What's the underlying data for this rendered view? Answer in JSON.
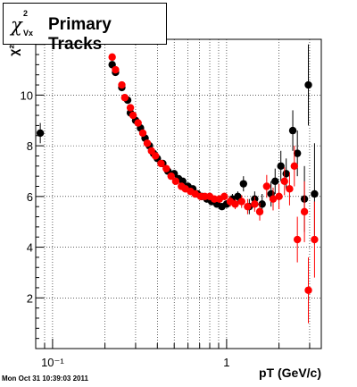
{
  "chart_data": {
    "type": "scatter",
    "title_parts": {
      "symbol": "χ",
      "superscript": "2",
      "subscript": "Vx",
      "text": "Primary Tracks"
    },
    "xlabel": "pT (GeV/c)",
    "ylabel": "χ²",
    "x_scale": "log",
    "xlim": [
      0.08,
      3.5
    ],
    "ylim": [
      0,
      12.2
    ],
    "x_tick_labels": [
      {
        "value": 0.1,
        "label": "10⁻¹"
      },
      {
        "value": 1,
        "label": "1"
      }
    ],
    "y_ticks": [
      2,
      4,
      6,
      8,
      10
    ],
    "grid": true,
    "series": [
      {
        "color": "#000000",
        "points": [
          [
            0.085,
            8.5,
            0.4
          ],
          [
            0.22,
            11.2,
            0.1
          ],
          [
            0.23,
            10.9,
            0.1
          ],
          [
            0.25,
            10.3,
            0.1
          ],
          [
            0.27,
            9.8,
            0.1
          ],
          [
            0.28,
            9.3,
            0.1
          ],
          [
            0.3,
            9.0,
            0.1
          ],
          [
            0.32,
            8.7,
            0.1
          ],
          [
            0.34,
            8.3,
            0.1
          ],
          [
            0.36,
            8.0,
            0.1
          ],
          [
            0.38,
            7.7,
            0.1
          ],
          [
            0.4,
            7.5,
            0.1
          ],
          [
            0.43,
            7.3,
            0.1
          ],
          [
            0.46,
            7.0,
            0.1
          ],
          [
            0.5,
            6.9,
            0.1
          ],
          [
            0.53,
            6.7,
            0.1
          ],
          [
            0.56,
            6.6,
            0.1
          ],
          [
            0.6,
            6.4,
            0.1
          ],
          [
            0.64,
            6.3,
            0.1
          ],
          [
            0.68,
            6.1,
            0.1
          ],
          [
            0.72,
            6.0,
            0.1
          ],
          [
            0.77,
            5.9,
            0.1
          ],
          [
            0.82,
            5.8,
            0.1
          ],
          [
            0.88,
            5.7,
            0.1
          ],
          [
            0.94,
            5.6,
            0.1
          ],
          [
            1.0,
            5.7,
            0.15
          ],
          [
            1.08,
            5.9,
            0.2
          ],
          [
            1.16,
            6.0,
            0.2
          ],
          [
            1.25,
            6.5,
            0.3
          ],
          [
            1.35,
            5.6,
            0.3
          ],
          [
            1.45,
            5.9,
            0.3
          ],
          [
            1.6,
            5.7,
            0.4
          ],
          [
            1.8,
            6.1,
            0.5
          ],
          [
            1.9,
            6.6,
            0.5
          ],
          [
            2.05,
            7.2,
            0.6
          ],
          [
            2.2,
            6.9,
            0.6
          ],
          [
            2.4,
            8.6,
            0.8
          ],
          [
            2.55,
            7.7,
            0.9
          ],
          [
            2.8,
            5.9,
            1.3
          ],
          [
            2.95,
            10.4,
            1.6
          ],
          [
            3.2,
            6.1,
            2.0
          ]
        ]
      },
      {
        "color": "#ff0000",
        "points": [
          [
            0.22,
            11.5,
            0.1
          ],
          [
            0.23,
            11.0,
            0.1
          ],
          [
            0.25,
            10.4,
            0.1
          ],
          [
            0.26,
            9.9,
            0.1
          ],
          [
            0.28,
            9.5,
            0.1
          ],
          [
            0.29,
            9.2,
            0.1
          ],
          [
            0.31,
            8.9,
            0.1
          ],
          [
            0.33,
            8.5,
            0.1
          ],
          [
            0.35,
            8.1,
            0.1
          ],
          [
            0.37,
            7.8,
            0.1
          ],
          [
            0.39,
            7.6,
            0.1
          ],
          [
            0.42,
            7.3,
            0.1
          ],
          [
            0.45,
            7.1,
            0.1
          ],
          [
            0.48,
            6.8,
            0.1
          ],
          [
            0.51,
            6.6,
            0.1
          ],
          [
            0.55,
            6.4,
            0.1
          ],
          [
            0.58,
            6.3,
            0.1
          ],
          [
            0.62,
            6.2,
            0.1
          ],
          [
            0.66,
            6.1,
            0.1
          ],
          [
            0.71,
            6.0,
            0.1
          ],
          [
            0.75,
            6.0,
            0.1
          ],
          [
            0.8,
            6.0,
            0.1
          ],
          [
            0.85,
            5.9,
            0.1
          ],
          [
            0.91,
            5.9,
            0.1
          ],
          [
            0.97,
            6.0,
            0.15
          ],
          [
            1.05,
            5.8,
            0.2
          ],
          [
            1.12,
            5.7,
            0.2
          ],
          [
            1.22,
            5.8,
            0.25
          ],
          [
            1.32,
            5.6,
            0.3
          ],
          [
            1.45,
            5.7,
            0.3
          ],
          [
            1.55,
            5.4,
            0.35
          ],
          [
            1.7,
            6.4,
            0.45
          ],
          [
            1.85,
            5.9,
            0.45
          ],
          [
            2.0,
            6.0,
            0.5
          ],
          [
            2.15,
            6.6,
            0.55
          ],
          [
            2.3,
            6.3,
            0.65
          ],
          [
            2.45,
            7.2,
            0.8
          ],
          [
            2.55,
            4.3,
            0.9
          ],
          [
            2.8,
            5.4,
            1.2
          ],
          [
            2.95,
            2.3,
            1.3
          ],
          [
            3.2,
            4.3,
            1.5
          ]
        ]
      }
    ]
  },
  "timestamp": "Mon Oct 31 10:39:03 2011"
}
